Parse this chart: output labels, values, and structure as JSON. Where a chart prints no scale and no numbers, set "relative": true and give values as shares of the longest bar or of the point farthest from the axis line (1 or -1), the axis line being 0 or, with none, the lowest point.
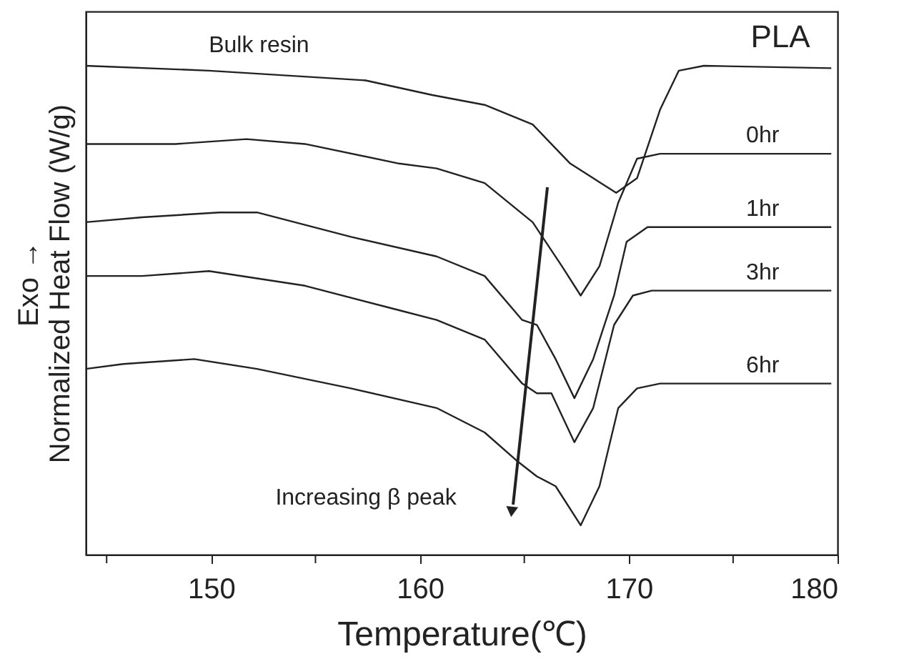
{
  "chart_data": {
    "type": "line",
    "relative": true,
    "xlabel": "Temperature(℃)",
    "ylabel": "Exo →\nNormalized Heat Flow (W/g)",
    "xlim": [
      144,
      180
    ],
    "xticks": [
      {
        "value": 145,
        "label": null
      },
      150,
      {
        "value": 155,
        "label": null
      },
      160,
      {
        "value": 165,
        "label": null
      },
      170,
      {
        "value": 175,
        "label": null
      },
      180
    ],
    "grid": false,
    "legend": false,
    "marker": "none",
    "line_style": "solid",
    "annotations": [
      "PLA",
      "Increasing β peak"
    ],
    "series": [
      {
        "name": "Bulk resin",
        "color": "#222222",
        "x": [
          144.0,
          149.9,
          157.4,
          160.6,
          163.1,
          165.4,
          167.2,
          168.3,
          169.4,
          170.4,
          171.5,
          172.4,
          173.6,
          179.7
        ],
        "values": [
          1.0,
          0.99,
          0.97,
          0.94,
          0.92,
          0.88,
          0.8,
          0.77,
          0.74,
          0.77,
          0.91,
          0.99,
          1.0,
          0.995
        ]
      },
      {
        "name": "0hr",
        "color": "#222222",
        "x": [
          144.0,
          148.3,
          151.7,
          154.5,
          159.0,
          160.8,
          163.1,
          165.4,
          166.8,
          167.7,
          168.6,
          169.5,
          170.4,
          171.5,
          179.7
        ],
        "values": [
          0.84,
          0.84,
          0.85,
          0.84,
          0.8,
          0.79,
          0.76,
          0.68,
          0.59,
          0.53,
          0.59,
          0.72,
          0.81,
          0.82,
          0.82
        ]
      },
      {
        "name": "1hr",
        "color": "#222222",
        "x": [
          144.0,
          146.7,
          150.4,
          152.2,
          156.7,
          160.8,
          163.1,
          164.9,
          165.6,
          166.5,
          167.4,
          168.3,
          169.3,
          169.9,
          170.9,
          179.7
        ],
        "values": [
          0.68,
          0.69,
          0.7,
          0.7,
          0.65,
          0.61,
          0.57,
          0.48,
          0.47,
          0.4,
          0.32,
          0.4,
          0.53,
          0.64,
          0.67,
          0.67
        ]
      },
      {
        "name": "3hr",
        "color": "#222222",
        "x": [
          144.0,
          146.7,
          149.9,
          154.5,
          159.0,
          160.8,
          163.1,
          164.9,
          165.6,
          166.3,
          167.4,
          168.3,
          169.3,
          170.2,
          171.1,
          179.7
        ],
        "values": [
          0.57,
          0.57,
          0.58,
          0.55,
          0.5,
          0.48,
          0.44,
          0.35,
          0.33,
          0.33,
          0.23,
          0.3,
          0.47,
          0.53,
          0.54,
          0.54
        ]
      },
      {
        "name": "6hr",
        "color": "#222222",
        "x": [
          144.0,
          145.8,
          149.2,
          152.2,
          156.7,
          160.8,
          163.1,
          164.7,
          165.6,
          166.5,
          167.7,
          168.6,
          169.5,
          170.4,
          171.5,
          179.7
        ],
        "values": [
          0.38,
          0.39,
          0.4,
          0.38,
          0.34,
          0.3,
          0.25,
          0.19,
          0.16,
          0.14,
          0.06,
          0.14,
          0.3,
          0.34,
          0.35,
          0.35
        ]
      }
    ]
  }
}
